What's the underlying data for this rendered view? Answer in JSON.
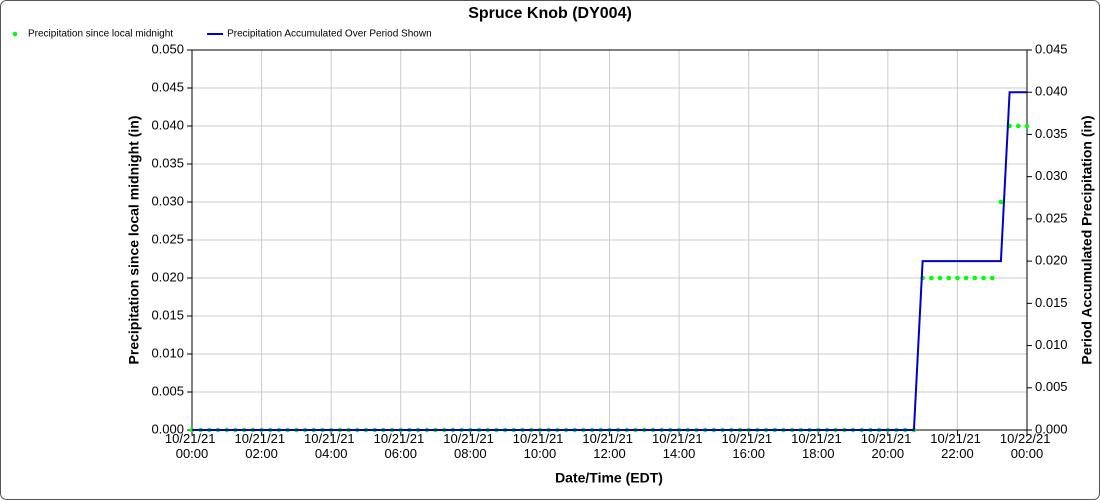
{
  "chart_data": {
    "type": "line",
    "title": "Spruce Knob (DY004)",
    "x_label": "Date/Time (EDT)",
    "y_label": "Precipitation since local midnight (in)",
    "y2_label": "Period Accumulated Precipitation (in)",
    "xlim": [
      0,
      24
    ],
    "xticks": [
      {
        "value": 0,
        "label": "10/21/21 00:00"
      },
      {
        "value": 2,
        "label": "10/21/21 02:00"
      },
      {
        "value": 4,
        "label": "10/21/21 04:00"
      },
      {
        "value": 6,
        "label": "10/21/21 06:00"
      },
      {
        "value": 8,
        "label": "10/21/21 08:00"
      },
      {
        "value": 10,
        "label": "10/21/21 10:00"
      },
      {
        "value": 12,
        "label": "10/21/21 12:00"
      },
      {
        "value": 14,
        "label": "10/21/21 14:00"
      },
      {
        "value": 16,
        "label": "10/21/21 16:00"
      },
      {
        "value": 18,
        "label": "10/21/21 18:00"
      },
      {
        "value": 20,
        "label": "10/21/21 20:00"
      },
      {
        "value": 22,
        "label": "10/21/21 22:00"
      },
      {
        "value": 24,
        "label": "10/22/21 00:00"
      }
    ],
    "ylim": [
      0,
      0.05
    ],
    "yticks": [
      {
        "value": 0,
        "label": "0.000"
      },
      {
        "value": 0.005,
        "label": "0.005"
      },
      {
        "value": 0.01,
        "label": "0.010"
      },
      {
        "value": 0.015,
        "label": "0.015"
      },
      {
        "value": 0.02,
        "label": "0.020"
      },
      {
        "value": 0.025,
        "label": "0.025"
      },
      {
        "value": 0.03,
        "label": "0.030"
      },
      {
        "value": 0.035,
        "label": "0.035"
      },
      {
        "value": 0.04,
        "label": "0.040"
      },
      {
        "value": 0.045,
        "label": "0.045"
      },
      {
        "value": 0.05,
        "label": "0.050"
      }
    ],
    "y2lim": [
      0,
      0.045
    ],
    "y2ticks": [
      {
        "value": 0,
        "label": "0.000"
      },
      {
        "value": 0.005,
        "label": "0.005"
      },
      {
        "value": 0.01,
        "label": "0.010"
      },
      {
        "value": 0.015,
        "label": "0.015"
      },
      {
        "value": 0.02,
        "label": "0.020"
      },
      {
        "value": 0.025,
        "label": "0.025"
      },
      {
        "value": 0.03,
        "label": "0.030"
      },
      {
        "value": 0.035,
        "label": "0.035"
      },
      {
        "value": 0.04,
        "label": "0.040"
      },
      {
        "value": 0.045,
        "label": "0.045"
      }
    ],
    "grid": true,
    "legend": "top-left",
    "series": [
      {
        "name": "Precipitation since local midnight",
        "color": "#00ff00",
        "style": "markers",
        "axis": "y",
        "x": [
          0,
          0.25,
          0.5,
          0.75,
          1,
          1.25,
          1.5,
          1.75,
          2,
          2.25,
          2.5,
          2.75,
          3,
          3.25,
          3.5,
          3.75,
          4,
          4.25,
          4.5,
          4.75,
          5,
          5.25,
          5.5,
          5.75,
          6,
          6.25,
          6.5,
          6.75,
          7,
          7.25,
          7.5,
          7.75,
          8,
          8.25,
          8.5,
          8.75,
          9,
          9.25,
          9.5,
          9.75,
          10,
          10.25,
          10.5,
          10.75,
          11,
          11.25,
          11.5,
          11.75,
          12,
          12.25,
          12.5,
          12.75,
          13,
          13.25,
          13.5,
          13.75,
          14,
          14.25,
          14.5,
          14.75,
          15,
          15.25,
          15.5,
          15.75,
          16,
          16.25,
          16.5,
          16.75,
          17,
          17.25,
          17.5,
          17.75,
          18,
          18.25,
          18.5,
          18.75,
          19,
          19.25,
          19.5,
          19.75,
          20,
          20.25,
          20.5,
          20.75,
          21,
          21.25,
          21.5,
          21.75,
          22,
          22.25,
          22.5,
          22.75,
          23,
          23.25,
          23.5,
          23.75,
          24
        ],
        "values": [
          0,
          0,
          0,
          0,
          0,
          0,
          0,
          0,
          0,
          0,
          0,
          0,
          0,
          0,
          0,
          0,
          0,
          0,
          0,
          0,
          0,
          0,
          0,
          0,
          0,
          0,
          0,
          0,
          0,
          0,
          0,
          0,
          0,
          0,
          0,
          0,
          0,
          0,
          0,
          0,
          0,
          0,
          0,
          0,
          0,
          0,
          0,
          0,
          0,
          0,
          0,
          0,
          0,
          0,
          0,
          0,
          0,
          0,
          0,
          0,
          0,
          0,
          0,
          0,
          0,
          0,
          0,
          0,
          0,
          0,
          0,
          0,
          0,
          0,
          0,
          0,
          0,
          0,
          0,
          0,
          0,
          0,
          0,
          0,
          0.02,
          0.02,
          0.02,
          0.02,
          0.02,
          0.02,
          0.02,
          0.02,
          0.02,
          0.03,
          0.04,
          0.04,
          0.04
        ]
      },
      {
        "name": "Precipitation Accumulated Over Period Shown",
        "color": "#0000cc",
        "style": "line",
        "axis": "y2",
        "x": [
          0,
          20.75,
          21,
          23.25,
          23.5,
          24
        ],
        "values": [
          0,
          0,
          0.02,
          0.02,
          0.04,
          0.04
        ]
      }
    ]
  }
}
